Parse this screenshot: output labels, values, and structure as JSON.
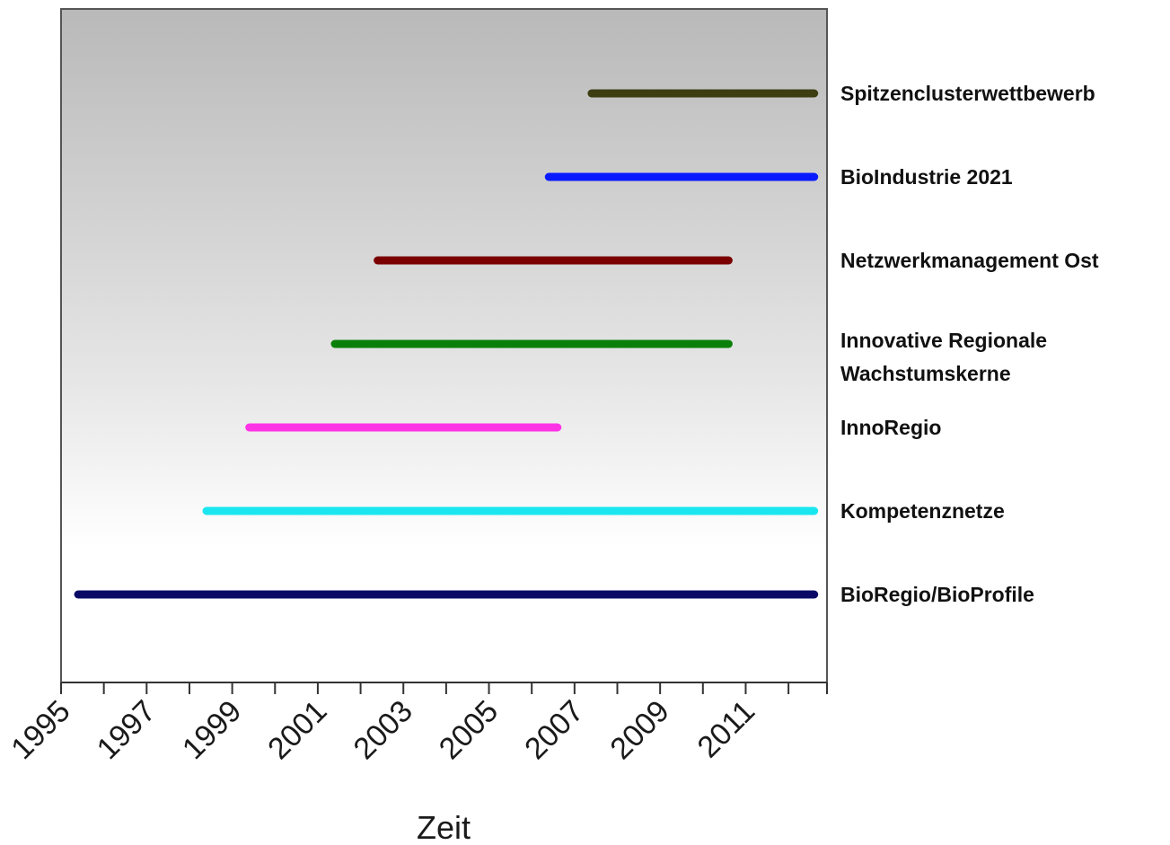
{
  "chart_data": {
    "type": "bar",
    "subtype": "horizontal-timeline",
    "xlabel": "Zeit",
    "xlim": [
      1995,
      2012.9
    ],
    "x_ticks": [
      1995,
      1997,
      1999,
      2001,
      2003,
      2005,
      2007,
      2009,
      2011
    ],
    "x_minor_step": 1,
    "background": "gradient-grey-to-white",
    "grid": false,
    "legend": "none",
    "series": [
      {
        "name": "Spitzenclusterwettbewerb",
        "label_lines": [
          "Spitzenclusterwettbewerb"
        ],
        "start": 2007.4,
        "end": 2012.6,
        "color": "#3d3d12"
      },
      {
        "name": "BioIndustrie 2021",
        "label_lines": [
          "BioIndustrie 2021"
        ],
        "start": 2006.4,
        "end": 2012.6,
        "color": "#0a1aff"
      },
      {
        "name": "Netzwerkmanagement Ost",
        "label_lines": [
          "Netzwerkmanagement Ost"
        ],
        "start": 2002.4,
        "end": 2010.6,
        "color": "#7a0000"
      },
      {
        "name": "Innovative Regionale Wachstumskerne",
        "label_lines": [
          "Innovative Regionale",
          "Wachstumskerne"
        ],
        "start": 2001.4,
        "end": 2010.6,
        "color": "#0a800a"
      },
      {
        "name": "InnoRegio",
        "label_lines": [
          "InnoRegio"
        ],
        "start": 1999.4,
        "end": 2006.6,
        "color": "#ff33e6"
      },
      {
        "name": "Kompetenznetze",
        "label_lines": [
          "Kompetenznetze"
        ],
        "start": 1998.4,
        "end": 2012.6,
        "color": "#1ae6f0"
      },
      {
        "name": "BioRegio/BioProfile",
        "label_lines": [
          "BioRegio/BioProfile"
        ],
        "start": 1995.4,
        "end": 2012.6,
        "color": "#0a0a66"
      }
    ]
  }
}
